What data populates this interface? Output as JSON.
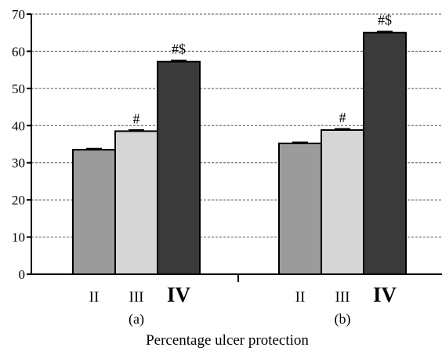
{
  "chart_data": {
    "type": "bar",
    "xlabel": "Percentage ulcer protection",
    "ylabel": "",
    "ylim": [
      0,
      70
    ],
    "yticks": [
      0,
      10,
      20,
      30,
      40,
      50,
      60,
      70
    ],
    "grid": "horizontal dashed",
    "groups": [
      {
        "label": "(a)",
        "bars": [
          {
            "category": "II",
            "value": 33.5,
            "error": 0.3,
            "annotation": "",
            "color": "#9b9b9b"
          },
          {
            "category": "III",
            "value": 38.5,
            "error": 0.3,
            "annotation": "#",
            "color": "#d6d6d6"
          },
          {
            "category": "IV",
            "value": 57.2,
            "error": 0.3,
            "annotation": "#$",
            "color": "#3a3a3a"
          }
        ]
      },
      {
        "label": "(b)",
        "bars": [
          {
            "category": "II",
            "value": 35.2,
            "error": 0.3,
            "annotation": "",
            "color": "#9b9b9b"
          },
          {
            "category": "III",
            "value": 38.8,
            "error": 0.3,
            "annotation": "#",
            "color": "#d6d6d6"
          },
          {
            "category": "IV",
            "value": 65.0,
            "error": 0.3,
            "annotation": "#$",
            "color": "#3a3a3a"
          }
        ]
      }
    ]
  }
}
